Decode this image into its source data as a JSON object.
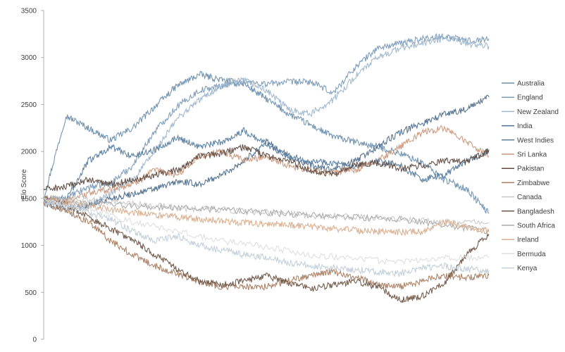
{
  "chart_data": {
    "type": "line",
    "title": "",
    "xlabel": "",
    "ylabel": "Elo Score",
    "ylim": [
      0,
      3500
    ],
    "yticks": [
      0,
      500,
      1000,
      1500,
      2000,
      2500,
      3000,
      3500
    ],
    "grid": false,
    "legend_position": "right",
    "x_range": [
      0,
      100
    ],
    "series": [
      {
        "name": "Australia",
        "color": "#6d8fae",
        "points": [
          [
            0,
            1500
          ],
          [
            5,
            2380
          ],
          [
            10,
            2250
          ],
          [
            15,
            2120
          ],
          [
            20,
            2250
          ],
          [
            25,
            2480
          ],
          [
            30,
            2700
          ],
          [
            35,
            2820
          ],
          [
            40,
            2760
          ],
          [
            45,
            2720
          ],
          [
            50,
            2560
          ],
          [
            55,
            2400
          ],
          [
            60,
            2280
          ],
          [
            65,
            2160
          ],
          [
            70,
            2100
          ],
          [
            75,
            2050
          ],
          [
            80,
            1980
          ],
          [
            85,
            1880
          ],
          [
            90,
            1700
          ],
          [
            95,
            1600
          ],
          [
            100,
            1340
          ]
        ]
      },
      {
        "name": "England",
        "color": "#7a9bb9",
        "points": [
          [
            0,
            1480
          ],
          [
            5,
            1500
          ],
          [
            10,
            1620
          ],
          [
            15,
            1660
          ],
          [
            20,
            1850
          ],
          [
            25,
            2220
          ],
          [
            30,
            2480
          ],
          [
            35,
            2650
          ],
          [
            40,
            2700
          ],
          [
            45,
            2740
          ],
          [
            50,
            2720
          ],
          [
            55,
            2740
          ],
          [
            60,
            2740
          ],
          [
            65,
            2620
          ],
          [
            70,
            2900
          ],
          [
            75,
            3100
          ],
          [
            80,
            3150
          ],
          [
            85,
            3200
          ],
          [
            90,
            3230
          ],
          [
            95,
            3180
          ],
          [
            100,
            3200
          ]
        ]
      },
      {
        "name": "New Zealand",
        "color": "#9fb6cc",
        "points": [
          [
            0,
            1480
          ],
          [
            5,
            1450
          ],
          [
            10,
            1420
          ],
          [
            15,
            1550
          ],
          [
            20,
            1700
          ],
          [
            25,
            2000
          ],
          [
            30,
            2350
          ],
          [
            35,
            2550
          ],
          [
            40,
            2700
          ],
          [
            45,
            2760
          ],
          [
            50,
            2650
          ],
          [
            55,
            2450
          ],
          [
            60,
            2400
          ],
          [
            65,
            2550
          ],
          [
            70,
            2800
          ],
          [
            75,
            3000
          ],
          [
            80,
            3100
          ],
          [
            85,
            3150
          ],
          [
            90,
            3200
          ],
          [
            95,
            3150
          ],
          [
            100,
            3120
          ]
        ]
      },
      {
        "name": "India",
        "color": "#4f6f8c",
        "points": [
          [
            0,
            1450
          ],
          [
            5,
            1390
          ],
          [
            10,
            1420
          ],
          [
            15,
            1500
          ],
          [
            20,
            1550
          ],
          [
            25,
            1600
          ],
          [
            30,
            1680
          ],
          [
            35,
            1650
          ],
          [
            40,
            1750
          ],
          [
            45,
            1900
          ],
          [
            50,
            2100
          ],
          [
            55,
            1950
          ],
          [
            60,
            1850
          ],
          [
            65,
            1800
          ],
          [
            70,
            1900
          ],
          [
            75,
            2050
          ],
          [
            80,
            2200
          ],
          [
            85,
            2300
          ],
          [
            90,
            2400
          ],
          [
            95,
            2450
          ],
          [
            100,
            2580
          ]
        ]
      },
      {
        "name": "West Indies",
        "color": "#5b7f9f",
        "points": [
          [
            0,
            1500
          ],
          [
            5,
            1480
          ],
          [
            10,
            1900
          ],
          [
            15,
            2050
          ],
          [
            20,
            1950
          ],
          [
            25,
            2020
          ],
          [
            30,
            2150
          ],
          [
            35,
            2050
          ],
          [
            40,
            2100
          ],
          [
            45,
            2220
          ],
          [
            50,
            2080
          ],
          [
            55,
            1950
          ],
          [
            60,
            1900
          ],
          [
            65,
            1880
          ],
          [
            70,
            1820
          ],
          [
            75,
            1900
          ],
          [
            80,
            1850
          ],
          [
            85,
            1700
          ],
          [
            90,
            1750
          ],
          [
            95,
            1900
          ],
          [
            100,
            2000
          ]
        ]
      },
      {
        "name": "Sri Lanka",
        "color": "#c9987c",
        "points": [
          [
            0,
            1500
          ],
          [
            5,
            1480
          ],
          [
            10,
            1550
          ],
          [
            15,
            1600
          ],
          [
            20,
            1650
          ],
          [
            25,
            1800
          ],
          [
            30,
            1750
          ],
          [
            35,
            1950
          ],
          [
            40,
            2000
          ],
          [
            45,
            1900
          ],
          [
            50,
            1950
          ],
          [
            55,
            1850
          ],
          [
            60,
            1800
          ],
          [
            65,
            1780
          ],
          [
            70,
            1800
          ],
          [
            75,
            1900
          ],
          [
            80,
            2050
          ],
          [
            85,
            2200
          ],
          [
            90,
            2250
          ],
          [
            95,
            2100
          ],
          [
            100,
            1950
          ]
        ]
      },
      {
        "name": "Pakistan",
        "color": "#5e4a3f",
        "points": [
          [
            0,
            1600
          ],
          [
            5,
            1620
          ],
          [
            10,
            1700
          ],
          [
            15,
            1650
          ],
          [
            20,
            1700
          ],
          [
            25,
            1750
          ],
          [
            30,
            1800
          ],
          [
            35,
            1950
          ],
          [
            40,
            1980
          ],
          [
            45,
            2050
          ],
          [
            50,
            1950
          ],
          [
            55,
            1900
          ],
          [
            60,
            1800
          ],
          [
            65,
            1750
          ],
          [
            70,
            1850
          ],
          [
            75,
            1880
          ],
          [
            80,
            1820
          ],
          [
            85,
            1850
          ],
          [
            90,
            1900
          ],
          [
            95,
            1880
          ],
          [
            100,
            2020
          ]
        ]
      },
      {
        "name": "Zimbabwe",
        "color": "#a87e62",
        "points": [
          [
            0,
            1450
          ],
          [
            5,
            1380
          ],
          [
            10,
            1250
          ],
          [
            15,
            1050
          ],
          [
            20,
            900
          ],
          [
            25,
            780
          ],
          [
            30,
            700
          ],
          [
            35,
            620
          ],
          [
            40,
            560
          ],
          [
            45,
            560
          ],
          [
            50,
            560
          ],
          [
            55,
            620
          ],
          [
            60,
            680
          ],
          [
            65,
            720
          ],
          [
            70,
            660
          ],
          [
            75,
            580
          ],
          [
            80,
            560
          ],
          [
            85,
            620
          ],
          [
            90,
            680
          ],
          [
            95,
            660
          ],
          [
            100,
            680
          ]
        ]
      },
      {
        "name": "Canada",
        "color": "#c7c7c7",
        "points": [
          [
            0,
            1500
          ],
          [
            10,
            1480
          ],
          [
            20,
            1440
          ],
          [
            30,
            1400
          ],
          [
            40,
            1380
          ],
          [
            50,
            1350
          ],
          [
            60,
            1320
          ],
          [
            70,
            1300
          ],
          [
            80,
            1280
          ],
          [
            90,
            1250
          ],
          [
            100,
            1240
          ]
        ]
      },
      {
        "name": "Bangladesh",
        "color": "#6e5647",
        "points": [
          [
            0,
            1500
          ],
          [
            5,
            1440
          ],
          [
            10,
            1300
          ],
          [
            15,
            1180
          ],
          [
            20,
            1050
          ],
          [
            25,
            900
          ],
          [
            30,
            750
          ],
          [
            35,
            620
          ],
          [
            40,
            580
          ],
          [
            45,
            620
          ],
          [
            50,
            680
          ],
          [
            55,
            600
          ],
          [
            60,
            540
          ],
          [
            65,
            580
          ],
          [
            70,
            620
          ],
          [
            75,
            560
          ],
          [
            80,
            420
          ],
          [
            85,
            460
          ],
          [
            90,
            600
          ],
          [
            95,
            900
          ],
          [
            100,
            1120
          ]
        ]
      },
      {
        "name": "South Africa",
        "color": "#a9a9a9",
        "points": [
          [
            0,
            1480
          ],
          [
            10,
            1440
          ],
          [
            20,
            1420
          ],
          [
            30,
            1400
          ],
          [
            40,
            1380
          ],
          [
            50,
            1350
          ],
          [
            60,
            1320
          ],
          [
            70,
            1300
          ],
          [
            80,
            1280
          ],
          [
            90,
            1220
          ],
          [
            100,
            1150
          ]
        ]
      },
      {
        "name": "Ireland",
        "color": "#d9ae8d",
        "points": [
          [
            0,
            1480
          ],
          [
            5,
            1460
          ],
          [
            10,
            1420
          ],
          [
            15,
            1380
          ],
          [
            20,
            1350
          ],
          [
            25,
            1320
          ],
          [
            30,
            1300
          ],
          [
            35,
            1280
          ],
          [
            40,
            1260
          ],
          [
            45,
            1240
          ],
          [
            50,
            1230
          ],
          [
            55,
            1220
          ],
          [
            60,
            1200
          ],
          [
            65,
            1180
          ],
          [
            70,
            1160
          ],
          [
            75,
            1150
          ],
          [
            80,
            1140
          ],
          [
            85,
            1150
          ],
          [
            90,
            1250
          ],
          [
            95,
            1200
          ],
          [
            100,
            1150
          ]
        ]
      },
      {
        "name": "Bermuda",
        "color": "#dddddd",
        "points": [
          [
            0,
            1480
          ],
          [
            10,
            1400
          ],
          [
            20,
            1250
          ],
          [
            30,
            1150
          ],
          [
            40,
            1050
          ],
          [
            50,
            980
          ],
          [
            60,
            900
          ],
          [
            70,
            860
          ],
          [
            80,
            820
          ],
          [
            90,
            870
          ],
          [
            100,
            870
          ]
        ]
      },
      {
        "name": "Kenya",
        "color": "#c2cdd8",
        "points": [
          [
            0,
            1460
          ],
          [
            5,
            1420
          ],
          [
            10,
            1350
          ],
          [
            15,
            1280
          ],
          [
            20,
            1150
          ],
          [
            25,
            1050
          ],
          [
            30,
            1100
          ],
          [
            35,
            1000
          ],
          [
            40,
            950
          ],
          [
            45,
            900
          ],
          [
            50,
            870
          ],
          [
            55,
            820
          ],
          [
            60,
            780
          ],
          [
            65,
            760
          ],
          [
            70,
            740
          ],
          [
            75,
            720
          ],
          [
            80,
            700
          ],
          [
            85,
            760
          ],
          [
            90,
            780
          ],
          [
            95,
            750
          ],
          [
            100,
            720
          ]
        ]
      }
    ]
  }
}
